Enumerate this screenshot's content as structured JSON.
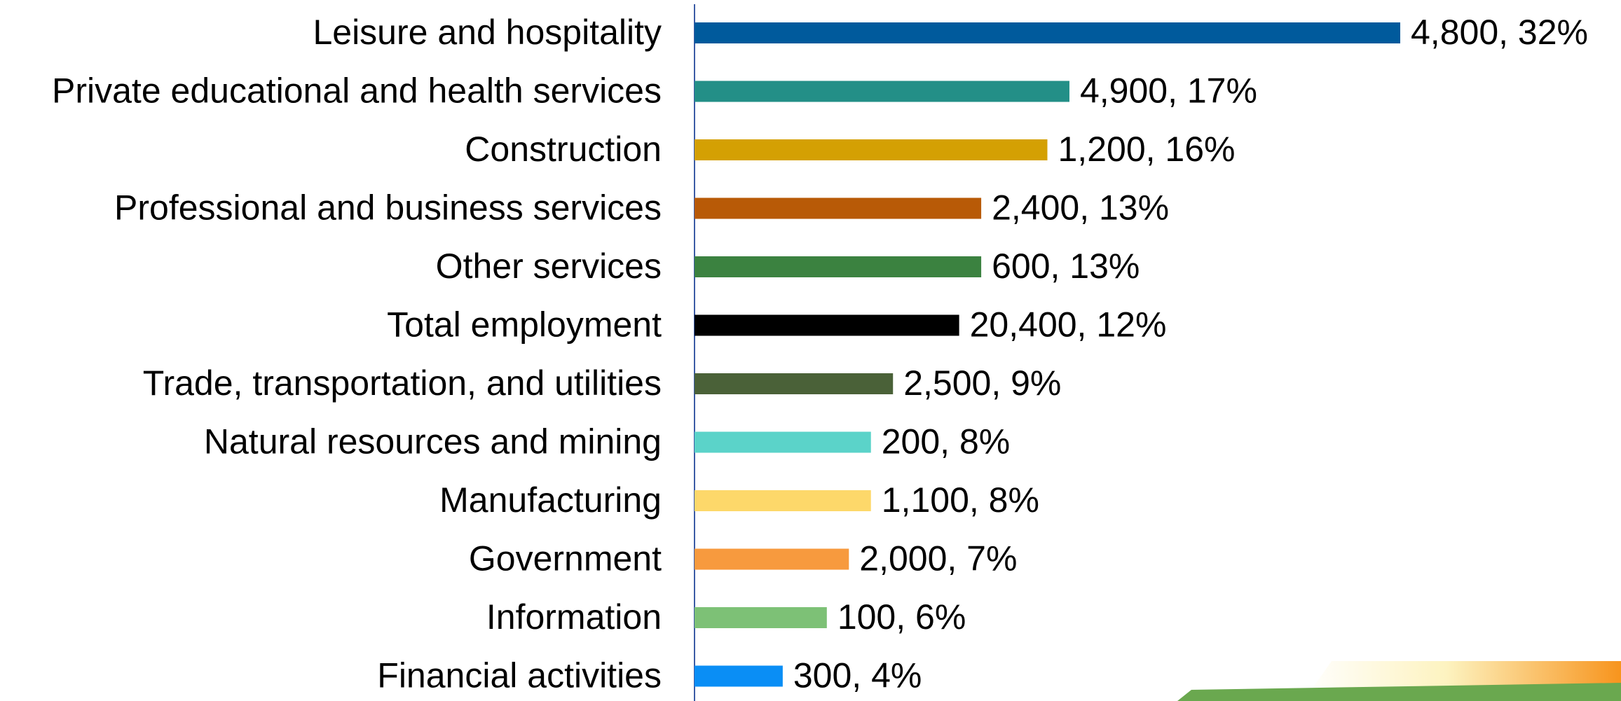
{
  "chart_data": {
    "type": "bar",
    "orientation": "horizontal",
    "categories": [
      "Leisure and hospitality",
      "Private educational and health services",
      "Construction",
      "Professional and business services",
      "Other services",
      "Total employment",
      "Trade, transportation, and utilities",
      "Natural resources and mining",
      "Manufacturing",
      "Government",
      "Information",
      "Financial activities"
    ],
    "values": [
      32,
      17,
      16,
      13,
      13,
      12,
      9,
      8,
      8,
      7,
      6,
      4
    ],
    "value_labels": [
      "4,800, 32%",
      "4,900, 17%",
      "1,200, 16%",
      "2,400, 13%",
      "600, 13%",
      "20,400, 12%",
      "2,500, 9%",
      "200, 8%",
      "1,100, 8%",
      "2,000, 7%",
      "100, 6%",
      "300, 4%"
    ],
    "colors": [
      "#005a9c",
      "#238f87",
      "#d4a003",
      "#b85a07",
      "#3b8240",
      "#000000",
      "#4a6138",
      "#5bd3c9",
      "#fdd86a",
      "#f79a3e",
      "#7dc176",
      "#0a8ef5"
    ],
    "xlim": [
      0,
      32
    ]
  }
}
